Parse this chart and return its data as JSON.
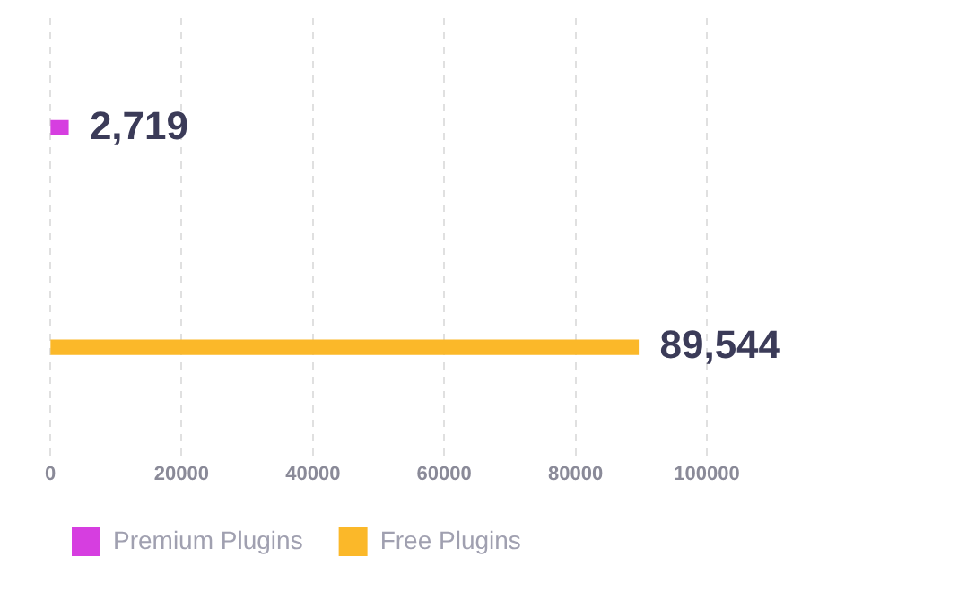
{
  "chart_data": {
    "type": "bar",
    "orientation": "horizontal",
    "categories": [
      null,
      null
    ],
    "series": [
      {
        "name": "Premium Plugins",
        "color": "#d63ee0",
        "values": [
          2719,
          null
        ],
        "value_labels": [
          "2,719",
          null
        ]
      },
      {
        "name": "Free Plugins",
        "color": "#fbb829",
        "values": [
          null,
          89544
        ],
        "value_labels": [
          null,
          "89,544"
        ]
      }
    ],
    "xlim": [
      0,
      100000
    ],
    "xticks": [
      0,
      20000,
      40000,
      60000,
      80000,
      100000
    ],
    "grid": "x",
    "legend": "bottom"
  }
}
